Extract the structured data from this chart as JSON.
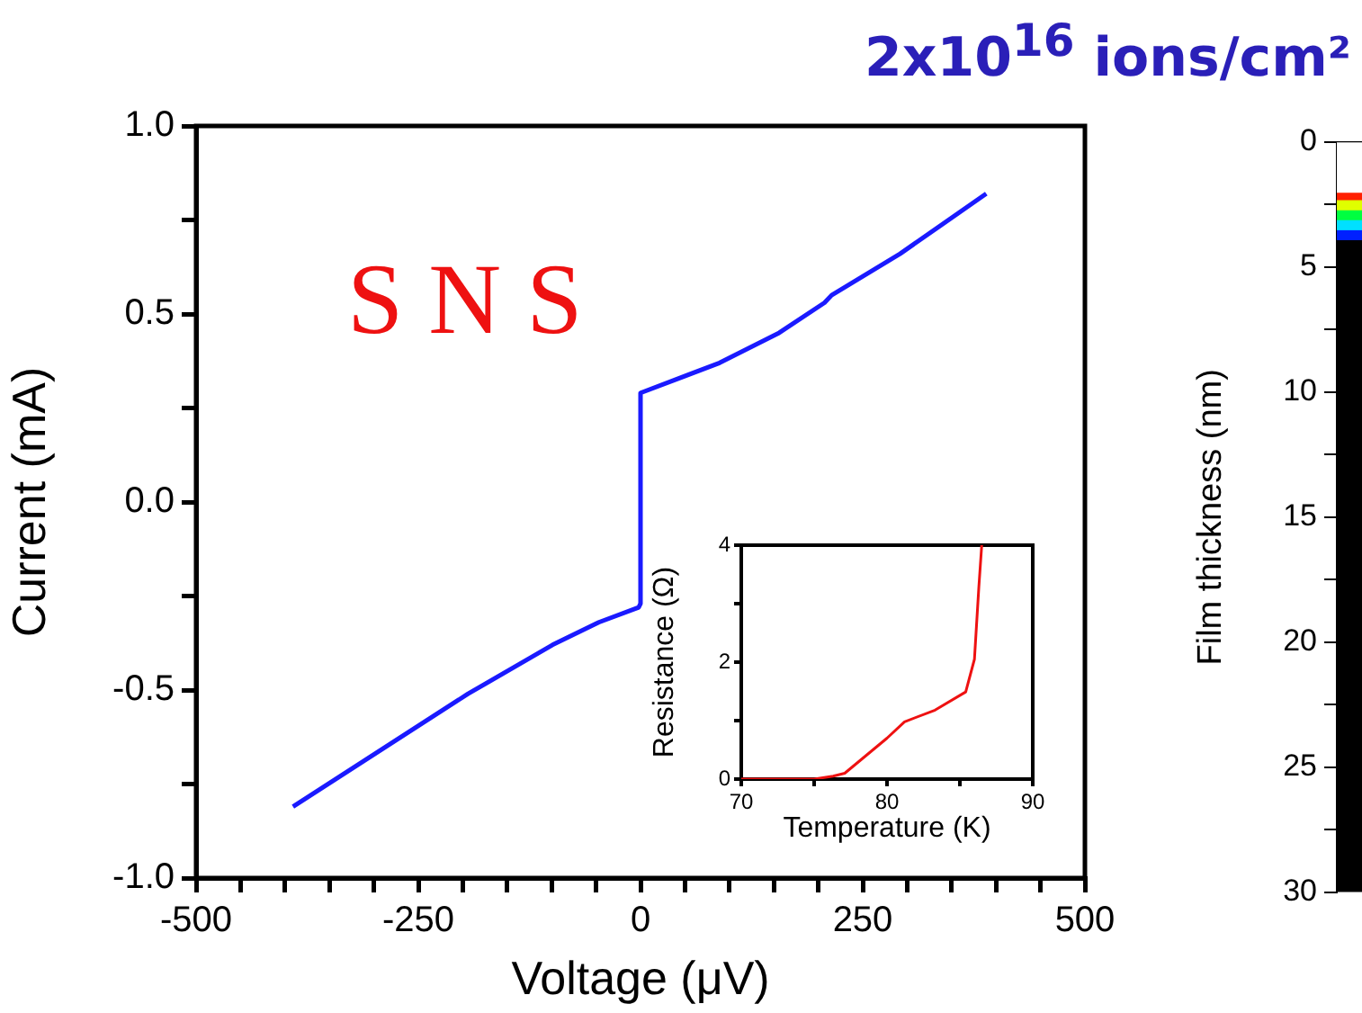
{
  "chart_data": [
    {
      "type": "line",
      "xlabel": "Voltage (μV)",
      "ylabel": "Current (mA)",
      "annotations": [
        "S N S"
      ],
      "x": [
        -391,
        -194,
        -99,
        -47,
        -2,
        0,
        0,
        89,
        156,
        207,
        215,
        292,
        389
      ],
      "series": [
        {
          "color": "#1a1aff",
          "values": [
            -0.81,
            -0.51,
            -0.38,
            -0.32,
            -0.28,
            -0.27,
            0.29,
            0.37,
            0.45,
            0.53,
            0.55,
            0.66,
            0.82
          ]
        }
      ],
      "xlim": [
        -500,
        500
      ],
      "xticks": [
        -500,
        {
          "value": -450,
          "label": null
        },
        {
          "value": -400,
          "label": null
        },
        {
          "value": -350,
          "label": null
        },
        {
          "value": -300,
          "label": null
        },
        -250,
        {
          "value": -200,
          "label": null
        },
        {
          "value": -150,
          "label": null
        },
        {
          "value": -100,
          "label": null
        },
        {
          "value": -50,
          "label": null
        },
        0,
        {
          "value": 50,
          "label": null
        },
        {
          "value": 100,
          "label": null
        },
        {
          "value": 150,
          "label": null
        },
        {
          "value": 200,
          "label": null
        },
        250,
        {
          "value": 300,
          "label": null
        },
        {
          "value": 350,
          "label": null
        },
        {
          "value": 400,
          "label": null
        },
        {
          "value": 450,
          "label": null
        },
        500
      ],
      "ylim": [
        -1,
        1
      ],
      "yticks": [
        {
          "value": -1,
          "label": "-1.0"
        },
        {
          "value": -0.75,
          "label": null
        },
        {
          "value": -0.5,
          "label": "-0.5"
        },
        {
          "value": -0.25,
          "label": null
        },
        {
          "value": 0,
          "label": "0.0"
        },
        {
          "value": 0.25,
          "label": null
        },
        {
          "value": 0.5,
          "label": "0.5"
        },
        {
          "value": 0.75,
          "label": null
        },
        {
          "value": 1,
          "label": "1.0"
        }
      ],
      "grid": false,
      "legend": false,
      "marker": "none"
    },
    {
      "type": "line",
      "xlabel": "Temperature (K)",
      "ylabel": "Resistance (Ω)",
      "x": [
        70,
        75,
        76.3,
        77.1,
        80,
        81.2,
        83.3,
        85.4,
        86,
        86.3,
        86.5
      ],
      "series": [
        {
          "color": "#ee1111",
          "values": [
            0,
            0,
            0.05,
            0.1,
            0.7,
            0.98,
            1.18,
            1.49,
            2.05,
            3.28,
            4
          ]
        }
      ],
      "xlim": [
        70,
        90
      ],
      "xticks": [
        70,
        {
          "value": 75,
          "label": null
        },
        80,
        {
          "value": 85,
          "label": null
        },
        90
      ],
      "ylim": [
        0,
        4
      ],
      "yticks": [
        0,
        {
          "value": 1,
          "label": null
        },
        2,
        {
          "value": 3,
          "label": null
        },
        4
      ],
      "grid": false,
      "legend": false,
      "marker": "none"
    },
    {
      "type": "bar",
      "title": "2x10$^{16}$ ions/cm²",
      "ylabel": "Film thickness (nm)",
      "categories": [
        null
      ],
      "stacked": true,
      "series": [
        {
          "color": "#ffffff",
          "values": [
            2
          ]
        },
        {
          "color": "#ff2000",
          "values": [
            0.3
          ]
        },
        {
          "color": "#e0ff00",
          "values": [
            0.4
          ]
        },
        {
          "color": "#00ff40",
          "values": [
            0.4
          ]
        },
        {
          "color": "#00e0ff",
          "values": [
            0.4
          ]
        },
        {
          "color": "#0020ff",
          "values": [
            0.4
          ]
        },
        {
          "color": "#000000",
          "values": [
            26.1
          ]
        }
      ],
      "ylim": [
        30,
        0
      ],
      "yticks": [
        0,
        {
          "value": 2.5,
          "label": null
        },
        5,
        {
          "value": 7.5,
          "label": null
        },
        10,
        {
          "value": 12.5,
          "label": null
        },
        15,
        {
          "value": 17.5,
          "label": null
        },
        20,
        {
          "value": 22.5,
          "label": null
        },
        25,
        {
          "value": 27.5,
          "label": null
        },
        30
      ],
      "tick_labels": "y",
      "grid": false,
      "legend": false
    }
  ]
}
